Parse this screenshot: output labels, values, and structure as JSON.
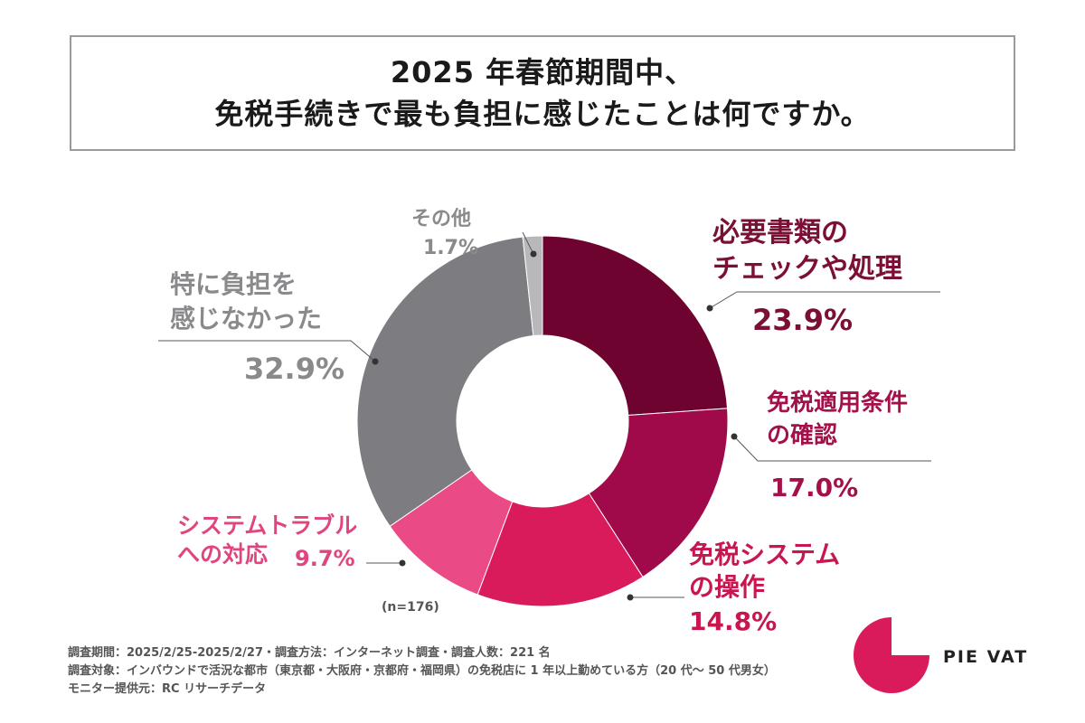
{
  "title": {
    "line1": "2025 年春節期間中、",
    "line2": "免税手続きで最も負担に感じたことは何ですか。"
  },
  "chart_data": {
    "type": "pie",
    "variant": "donut",
    "title": "2025 年春節期間中、免税手続きで最も負担に感じたことは何ですか。",
    "n_label": "(n=176)",
    "slices": [
      {
        "label_line1": "必要書類の",
        "label_line2": "チェックや処理",
        "value": 23.9,
        "pct": "23.9%",
        "color": "#6e0330",
        "text_color": "#7b0f35"
      },
      {
        "label_line1": "免税適用条件",
        "label_line2": "の確認",
        "value": 17.0,
        "pct": "17.0%",
        "color": "#a10a4a",
        "text_color": "#a3114a"
      },
      {
        "label_line1": "免税システム",
        "label_line2": "の操作",
        "value": 14.8,
        "pct": "14.8%",
        "color": "#d91b5c",
        "text_color": "#c8164f"
      },
      {
        "label_line1": "システムトラブル",
        "label_line2": "への対応",
        "value": 9.7,
        "pct": "9.7%",
        "color": "#ea4a85",
        "text_color": "#e0457f"
      },
      {
        "label_line1": "特に負担を",
        "label_line2": "感じなかった",
        "value": 32.9,
        "pct": "32.9%",
        "color": "#7d7c80",
        "text_color": "#8a8a8c"
      },
      {
        "label_line1": "その他",
        "label_line2": "",
        "value": 1.7,
        "pct": "1.7%",
        "color": "#b8b8bb",
        "text_color": "#8a8a8c"
      }
    ]
  },
  "notes": {
    "line1": "調査期間：2025/2/25-2025/2/27・調査方法：インターネット調査・調査人数：221 名",
    "line2": "調査対象：インバウンドで活況な都市（東京都・大阪府・京都府・福岡県）の免税店に 1 年以上勤めている方（20 代～ 50 代男女）",
    "line3": "モニター提供元：RC リサーチデータ"
  },
  "logo": {
    "text": "PIE VAT",
    "color": "#d91b5c"
  }
}
